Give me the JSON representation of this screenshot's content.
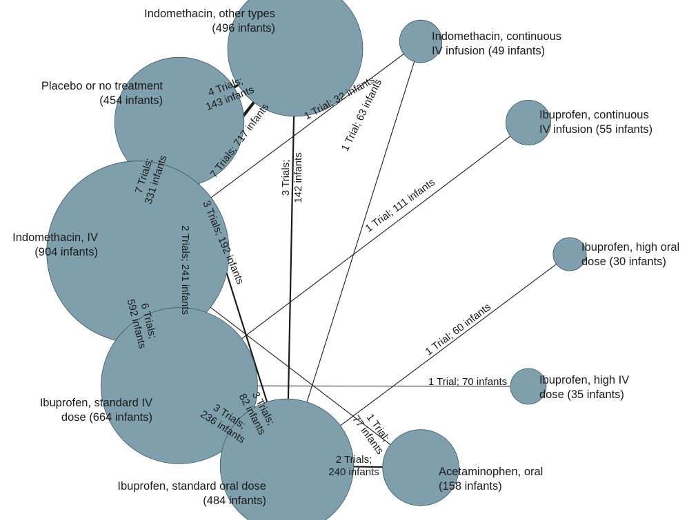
{
  "nodes": [
    {
      "id": "indo_other",
      "lines": [
        "Indomethacin, other types",
        "(496 infants)"
      ],
      "infants": 496
    },
    {
      "id": "placebo",
      "lines": [
        "Placebo or no treatment",
        "(454 infants)"
      ],
      "infants": 454
    },
    {
      "id": "indo_iv",
      "lines": [
        "Indomethacin, IV",
        "(904 infants)"
      ],
      "infants": 904
    },
    {
      "id": "ibu_std_iv",
      "lines": [
        "Ibuprofen, standard IV",
        "dose (664 infants)"
      ],
      "infants": 664
    },
    {
      "id": "ibu_std_oral",
      "lines": [
        "Ibuprofen, standard oral dose",
        "(484 infants)"
      ],
      "infants": 484
    },
    {
      "id": "acet_oral",
      "lines": [
        "Acetaminophen, oral",
        "(158 infants)"
      ],
      "infants": 158
    },
    {
      "id": "indo_cont",
      "lines": [
        "Indomethacin, continuous",
        "IV infusion (49 infants)"
      ],
      "infants": 49
    },
    {
      "id": "ibu_cont",
      "lines": [
        "Ibuprofen, continuous",
        "IV infusion (55 infants)"
      ],
      "infants": 55
    },
    {
      "id": "ibu_high_oral",
      "lines": [
        "Ibuprofen, high oral",
        "dose (30 infants)"
      ],
      "infants": 30
    },
    {
      "id": "ibu_high_iv",
      "lines": [
        "Ibuprofen, high IV",
        "dose (35 infants)"
      ],
      "infants": 35
    }
  ],
  "edges": [
    {
      "from": "placebo",
      "to": "indo_other",
      "trials": 4,
      "label_lines": [
        "4 Trials;",
        "143 infants"
      ]
    },
    {
      "from": "indo_iv",
      "to": "indo_other",
      "trials": 7,
      "label_lines": [
        "7 Trials; 717 infants"
      ]
    },
    {
      "from": "indo_other",
      "to": "ibu_std_oral",
      "trials": 3,
      "label_lines": [
        "3 Trials;",
        "142 infants"
      ]
    },
    {
      "from": "placebo",
      "to": "indo_iv",
      "trials": 7,
      "label_lines": [
        "7 Trials;",
        "331 infants"
      ]
    },
    {
      "from": "placebo",
      "to": "ibu_std_iv",
      "trials": 2,
      "label_lines": [
        "2 Trials; 241 infants"
      ]
    },
    {
      "from": "placebo",
      "to": "ibu_std_oral",
      "trials": 3,
      "label_lines": [
        "3 Trials; 192 infants"
      ]
    },
    {
      "from": "indo_iv",
      "to": "indo_cont",
      "trials": 1,
      "label_lines": [
        "1 Trial; 32 infants"
      ]
    },
    {
      "from": "ibu_std_oral",
      "to": "indo_cont",
      "trials": 1,
      "label_lines": [
        "1 Trial; 63 infants"
      ]
    },
    {
      "from": "ibu_std_iv",
      "to": "ibu_cont",
      "trials": 1,
      "label_lines": [
        "1 Trial; 111 infants"
      ]
    },
    {
      "from": "ibu_std_oral",
      "to": "ibu_high_oral",
      "trials": 1,
      "label_lines": [
        "1 Trial; 60 infants"
      ]
    },
    {
      "from": "indo_iv",
      "to": "ibu_std_iv",
      "trials": 6,
      "label_lines": [
        "6 Trials;",
        "592 infants"
      ]
    },
    {
      "from": "indo_iv",
      "to": "ibu_std_oral",
      "trials": 3,
      "label_lines": [
        "3 Trials;",
        "82 infants"
      ]
    },
    {
      "from": "indo_iv",
      "to": "acet_oral",
      "trials": 1,
      "label_lines": [
        "1 Trial;",
        "77 infants"
      ]
    },
    {
      "from": "ibu_std_iv",
      "to": "ibu_high_iv",
      "trials": 1,
      "label_lines": [
        "1 Trial; 70 infants"
      ]
    },
    {
      "from": "ibu_std_iv",
      "to": "ibu_std_oral",
      "trials": 3,
      "label_lines": [
        "3 Trials;",
        "236 infants"
      ]
    },
    {
      "from": "ibu_std_oral",
      "to": "acet_oral",
      "trials": 2,
      "label_lines": [
        "2 Trials;",
        "240 infants"
      ]
    }
  ],
  "colors": {
    "node_fill": "#7f9fad",
    "node_stroke": "#3d5560",
    "edge": "#1a1a1a",
    "text": "#1a1a1a"
  }
}
